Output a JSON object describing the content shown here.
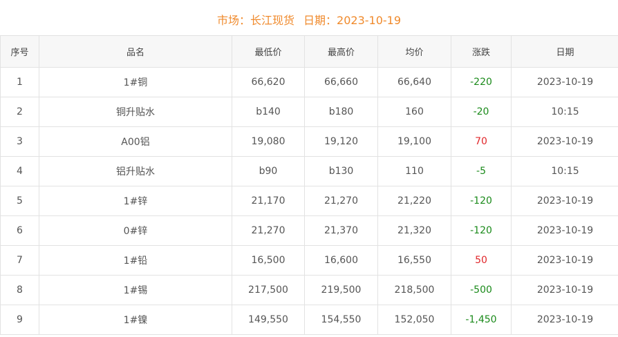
{
  "header": {
    "market_label": "市场：长江现货",
    "date_label": "日期：2023-10-19"
  },
  "columns": [
    "序号",
    "品名",
    "最低价",
    "最高价",
    "均价",
    "涨跌",
    "日期"
  ],
  "colors": {
    "title": "#f08a2c",
    "up": "#e0262a",
    "down": "#1a8a1a"
  },
  "rows": [
    [
      "1",
      "1#铜",
      "66,620",
      "66,660",
      "66,640",
      "-220",
      "2023-10-19"
    ],
    [
      "2",
      "铜升贴水",
      "b140",
      "b180",
      "160",
      "-20",
      "10:15"
    ],
    [
      "3",
      "A00铝",
      "19,080",
      "19,120",
      "19,100",
      "70",
      "2023-10-19"
    ],
    [
      "4",
      "铝升贴水",
      "b90",
      "b130",
      "110",
      "-5",
      "10:15"
    ],
    [
      "5",
      "1#锌",
      "21,170",
      "21,270",
      "21,220",
      "-120",
      "2023-10-19"
    ],
    [
      "6",
      "0#锌",
      "21,270",
      "21,370",
      "21,320",
      "-120",
      "2023-10-19"
    ],
    [
      "7",
      "1#铅",
      "16,500",
      "16,600",
      "16,550",
      "50",
      "2023-10-19"
    ],
    [
      "8",
      "1#锡",
      "217,500",
      "219,500",
      "218,500",
      "-500",
      "2023-10-19"
    ],
    [
      "9",
      "1#镍",
      "149,550",
      "154,550",
      "152,050",
      "-1,450",
      "2023-10-19"
    ]
  ]
}
